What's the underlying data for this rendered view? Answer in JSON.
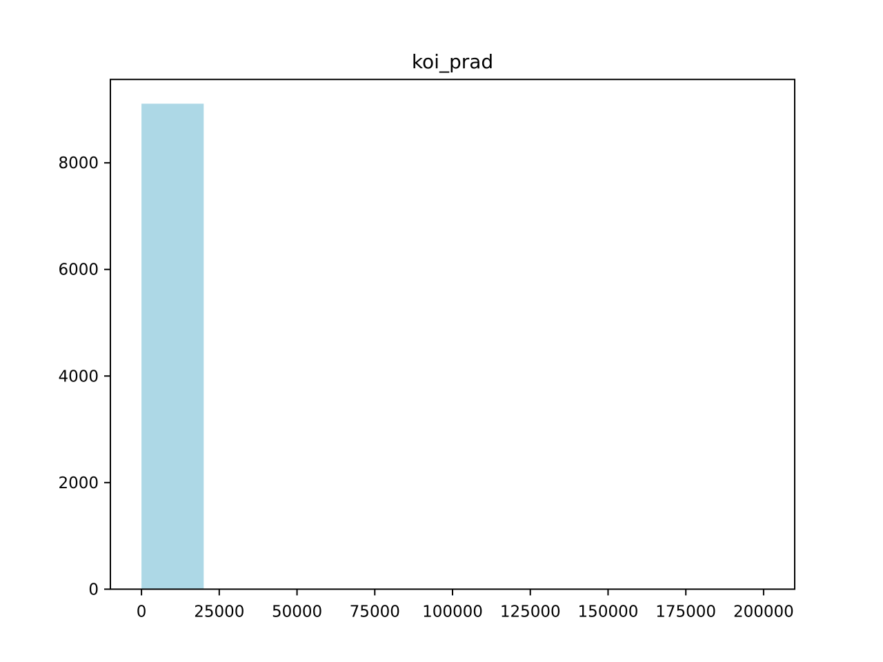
{
  "chart_data": {
    "type": "bar",
    "title": "koi_prad",
    "xlabel": "",
    "ylabel": "",
    "bins": [
      {
        "x0": 0,
        "x1": 20000,
        "count": 9110
      },
      {
        "x0": 20000,
        "x1": 40000,
        "count": 0
      },
      {
        "x0": 40000,
        "x1": 60000,
        "count": 0
      },
      {
        "x0": 60000,
        "x1": 80000,
        "count": 0
      },
      {
        "x0": 80000,
        "x1": 100000,
        "count": 0
      },
      {
        "x0": 100000,
        "x1": 120000,
        "count": 0
      },
      {
        "x0": 120000,
        "x1": 140000,
        "count": 0
      },
      {
        "x0": 140000,
        "x1": 160000,
        "count": 0
      },
      {
        "x0": 160000,
        "x1": 180000,
        "count": 0
      },
      {
        "x0": 180000,
        "x1": 200000,
        "count": 0
      }
    ],
    "xlim": [
      -10000,
      210000
    ],
    "ylim": [
      0,
      9565
    ],
    "xticks": [
      0,
      25000,
      50000,
      75000,
      100000,
      125000,
      150000,
      175000,
      200000
    ],
    "yticks": [
      0,
      2000,
      4000,
      6000,
      8000
    ],
    "grid": false,
    "bar_color": "#add8e6"
  }
}
